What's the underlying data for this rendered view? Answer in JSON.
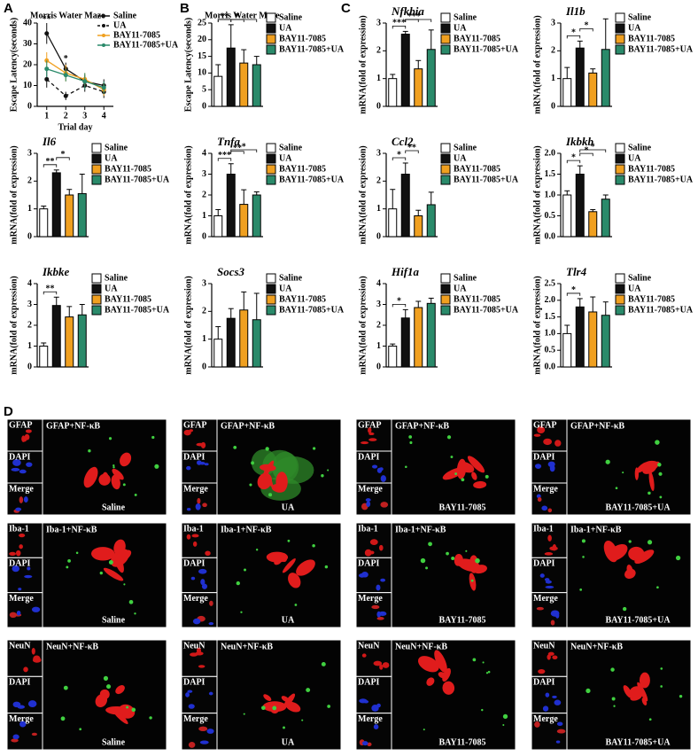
{
  "panel_labels": [
    "A",
    "B",
    "C",
    "D"
  ],
  "chart_data": [
    {
      "type": "line",
      "title": "Morris Water Maze",
      "x_label": "Trial day",
      "y_label": "Escape Latency(seconds)",
      "x": [
        1,
        2,
        3,
        4
      ],
      "xlim": [
        0.5,
        4.5
      ],
      "xticks": [
        1,
        2,
        3,
        4
      ],
      "ylim": [
        0,
        40
      ],
      "yticks": [
        0,
        10,
        20,
        30,
        40
      ],
      "series": [
        {
          "name": "Saline",
          "color": "#111111",
          "linestyle": "solid",
          "values": [
            35,
            18,
            12,
            10
          ],
          "errors": [
            5,
            3,
            3,
            3
          ]
        },
        {
          "name": "UA",
          "color": "#111111",
          "linestyle": "dashed",
          "values": [
            13,
            5,
            10,
            7
          ],
          "errors": [
            4,
            2,
            3,
            3
          ]
        },
        {
          "name": "BAY11-7085",
          "color": "#f0a020",
          "linestyle": "solid",
          "values": [
            22,
            16,
            13,
            8
          ],
          "errors": [
            4,
            4,
            3,
            3
          ]
        },
        {
          "name": "BAY11-7085+UA",
          "color": "#2a8a6a",
          "linestyle": "solid",
          "values": [
            18,
            15,
            12,
            9
          ],
          "errors": [
            4,
            3,
            4,
            3
          ]
        }
      ],
      "significance": [
        {
          "x": 1,
          "label": "**"
        },
        {
          "x": 2,
          "label": "*"
        }
      ]
    },
    {
      "type": "bar",
      "title": "Morris Water Maze",
      "title_italic": false,
      "y_label": "Escape Latency(seconds)",
      "categories": [
        "Saline",
        "UA",
        "BAY11-7085",
        "BAY11-7085+UA"
      ],
      "colors": [
        "#ffffff",
        "#111111",
        "#f0a020",
        "#2a8a6a"
      ],
      "values": [
        9,
        17.5,
        13,
        12.5
      ],
      "errors": [
        3.5,
        7,
        4,
        2.5
      ],
      "ylim": [
        0,
        25
      ],
      "yticks": [
        0,
        5,
        10,
        15,
        20,
        25
      ],
      "significance": [
        {
          "pair": [
            "Saline",
            "UA"
          ],
          "label": "**"
        },
        {
          "pair": [
            "UA",
            "BAY11-7085"
          ],
          "label": "*"
        },
        {
          "pair": [
            "Saline",
            "BAY11-7085+UA"
          ],
          "label": "*"
        }
      ]
    },
    {
      "type": "bar",
      "title": "Nfkbia",
      "title_italic": true,
      "y_label": "mRNA(fold of expression)",
      "categories": [
        "Saline",
        "UA",
        "BAY11-7085",
        "BAY11-7085+UA"
      ],
      "colors": [
        "#ffffff",
        "#111111",
        "#f0a020",
        "#2a8a6a"
      ],
      "values": [
        1,
        2.6,
        1.35,
        2.05
      ],
      "errors": [
        0.15,
        0.1,
        0.3,
        0.7
      ],
      "ylim": [
        0,
        3
      ],
      "yticks": [
        0,
        1,
        2,
        3
      ],
      "significance": [
        {
          "pair": [
            "Saline",
            "UA"
          ],
          "label": "***"
        },
        {
          "pair": [
            "UA",
            "BAY11-7085"
          ],
          "label": "**"
        },
        {
          "pair": [
            "UA",
            "BAY11-7085+UA"
          ],
          "label": "*"
        }
      ]
    },
    {
      "type": "bar",
      "title": "Il1b",
      "title_italic": true,
      "y_label": "mRNA(fold of expression)",
      "categories": [
        "Saline",
        "UA",
        "BAY11-7085",
        "BAY11-7085+UA"
      ],
      "colors": [
        "#ffffff",
        "#111111",
        "#f0a020",
        "#2a8a6a"
      ],
      "values": [
        1,
        2.1,
        1.2,
        2.05
      ],
      "errors": [
        0.4,
        0.25,
        0.15,
        1.1
      ],
      "ylim": [
        0,
        3
      ],
      "yticks": [
        0,
        1,
        2,
        3
      ],
      "significance": [
        {
          "pair": [
            "Saline",
            "UA"
          ],
          "label": "*"
        },
        {
          "pair": [
            "UA",
            "BAY11-7085"
          ],
          "label": "*"
        }
      ]
    },
    {
      "type": "bar",
      "title": "Il6",
      "title_italic": true,
      "y_label": "mRNA(fold of expression)",
      "categories": [
        "Saline",
        "UA",
        "BAY11-7085",
        "BAY11-7085+UA"
      ],
      "colors": [
        "#ffffff",
        "#111111",
        "#f0a020",
        "#2a8a6a"
      ],
      "values": [
        1,
        2.3,
        1.5,
        1.55
      ],
      "errors": [
        0.1,
        0.1,
        0.2,
        0.7
      ],
      "ylim": [
        0,
        3
      ],
      "yticks": [
        0,
        1,
        2,
        3
      ],
      "significance": [
        {
          "pair": [
            "Saline",
            "UA"
          ],
          "label": "**"
        },
        {
          "pair": [
            "UA",
            "BAY11-7085"
          ],
          "label": "*"
        }
      ]
    },
    {
      "type": "bar",
      "title": "Tnfa",
      "title_italic": true,
      "y_label": "mRNA(fold of expression)",
      "categories": [
        "Saline",
        "UA",
        "BAY11-7085",
        "BAY11-7085+UA"
      ],
      "colors": [
        "#ffffff",
        "#111111",
        "#f0a020",
        "#2a8a6a"
      ],
      "values": [
        1,
        3,
        1.55,
        2
      ],
      "errors": [
        0.3,
        0.5,
        0.7,
        0.15
      ],
      "ylim": [
        0,
        4
      ],
      "yticks": [
        0,
        1,
        2,
        3,
        4
      ],
      "significance": [
        {
          "pair": [
            "Saline",
            "UA"
          ],
          "label": "***"
        },
        {
          "pair": [
            "UA",
            "BAY11-7085"
          ],
          "label": "**"
        },
        {
          "pair": [
            "UA",
            "BAY11-7085+UA"
          ],
          "label": "*"
        }
      ]
    },
    {
      "type": "bar",
      "title": "Ccl2",
      "title_italic": true,
      "y_label": "mRNA(fold of expression)",
      "categories": [
        "Saline",
        "UA",
        "BAY11-7085",
        "BAY11-7085+UA"
      ],
      "colors": [
        "#ffffff",
        "#111111",
        "#f0a020",
        "#2a8a6a"
      ],
      "values": [
        1,
        2.25,
        0.75,
        1.15
      ],
      "errors": [
        0.7,
        0.4,
        0.2,
        0.45
      ],
      "ylim": [
        0,
        3
      ],
      "yticks": [
        0,
        1,
        2,
        3
      ],
      "significance": [
        {
          "pair": [
            "Saline",
            "UA"
          ],
          "label": "*"
        },
        {
          "pair": [
            "UA",
            "BAY11-7085"
          ],
          "label": "**"
        }
      ]
    },
    {
      "type": "bar",
      "title": "Ikbkb",
      "title_italic": true,
      "y_label": "mRNA(fold of expression)",
      "categories": [
        "Saline",
        "UA",
        "BAY11-7085",
        "BAY11-7085+UA"
      ],
      "colors": [
        "#ffffff",
        "#111111",
        "#f0a020",
        "#2a8a6a"
      ],
      "values": [
        1,
        1.5,
        0.6,
        0.9
      ],
      "errors": [
        0.1,
        0.2,
        0.05,
        0.1
      ],
      "ylim": [
        0,
        2
      ],
      "yticks": [
        {
          "value": 0,
          "label": "0.0"
        },
        0.5,
        {
          "value": 1,
          "label": "1.0"
        },
        1.5,
        {
          "value": 2,
          "label": "2.0"
        }
      ],
      "significance": [
        {
          "pair": [
            "Saline",
            "UA"
          ],
          "label": "*"
        },
        {
          "pair": [
            "UA",
            "BAY11-7085"
          ],
          "label": "*"
        },
        {
          "pair": [
            "UA",
            "BAY11-7085+UA"
          ],
          "label": "*"
        }
      ]
    },
    {
      "type": "bar",
      "title": "Ikbke",
      "title_italic": true,
      "y_label": "mRNA(fold of expression)",
      "categories": [
        "Saline",
        "UA",
        "BAY11-7085",
        "BAY11-7085+UA"
      ],
      "colors": [
        "#ffffff",
        "#111111",
        "#f0a020",
        "#2a8a6a"
      ],
      "values": [
        1,
        2.95,
        2.4,
        2.5
      ],
      "errors": [
        0.15,
        0.4,
        0.5,
        0.5
      ],
      "ylim": [
        0,
        4
      ],
      "yticks": [
        0,
        1,
        2,
        3,
        4
      ],
      "significance": [
        {
          "pair": [
            "Saline",
            "UA"
          ],
          "label": "**"
        }
      ]
    },
    {
      "type": "bar",
      "title": "Socs3",
      "title_italic": true,
      "y_label": "mRNA(fold of expression)",
      "categories": [
        "Saline",
        "UA",
        "BAY11-7085",
        "BAY11-7085+UA"
      ],
      "colors": [
        "#ffffff",
        "#111111",
        "#f0a020",
        "#2a8a6a"
      ],
      "values": [
        1,
        1.75,
        2.05,
        1.7
      ],
      "errors": [
        0.45,
        0.35,
        0.65,
        0.95
      ],
      "ylim": [
        0,
        3
      ],
      "yticks": [
        0,
        1,
        2,
        3
      ],
      "significance": []
    },
    {
      "type": "bar",
      "title": "Hif1a",
      "title_italic": true,
      "y_label": "mRNA(fold of expression)",
      "categories": [
        "Saline",
        "UA",
        "BAY11-7085",
        "BAY11-7085+UA"
      ],
      "colors": [
        "#ffffff",
        "#111111",
        "#f0a020",
        "#2a8a6a"
      ],
      "values": [
        1,
        2.35,
        2.85,
        3.05
      ],
      "errors": [
        0.1,
        0.4,
        0.3,
        0.25
      ],
      "ylim": [
        0,
        4
      ],
      "yticks": [
        0,
        1,
        2,
        3,
        4
      ],
      "significance": [
        {
          "pair": [
            "Saline",
            "UA"
          ],
          "label": "*"
        }
      ]
    },
    {
      "type": "bar",
      "title": "Tlr4",
      "title_italic": true,
      "y_label": "mRNA(fold of expression)",
      "categories": [
        "Saline",
        "UA",
        "BAY11-7085",
        "BAY11-7085+UA"
      ],
      "colors": [
        "#ffffff",
        "#111111",
        "#f0a020",
        "#2a8a6a"
      ],
      "values": [
        1,
        1.8,
        1.65,
        1.55
      ],
      "errors": [
        0.25,
        0.25,
        0.45,
        0.4
      ],
      "ylim": [
        0,
        2.5
      ],
      "yticks": [
        {
          "value": 0,
          "label": "0.0"
        },
        0.5,
        {
          "value": 1,
          "label": "1.0"
        },
        1.5,
        {
          "value": 2,
          "label": "2.0"
        },
        2.5
      ],
      "significance": [
        {
          "pair": [
            "Saline",
            "UA"
          ],
          "label": "*"
        }
      ]
    }
  ],
  "micrographs": {
    "rows": [
      {
        "stain": "GFAP",
        "merge_title": "GFAP+NF-κB"
      },
      {
        "stain": "Iba-1",
        "merge_title": "Iba-1+NF-κB"
      },
      {
        "stain": "NeuN",
        "merge_title": "NeuN+NF-κB"
      }
    ],
    "channels": [
      "DAPI",
      "Merge"
    ],
    "groups": [
      "Saline",
      "UA",
      "BAY11-7085",
      "BAY11-7085+UA"
    ]
  }
}
